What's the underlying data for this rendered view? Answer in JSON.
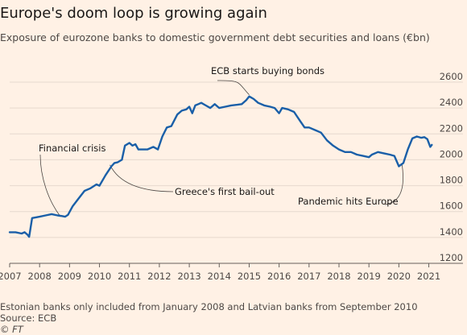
{
  "chart_data": {
    "type": "line",
    "title": "Europe's doom loop is growing again",
    "subtitle": "Exposure of eurozone banks to domestic government debt securities and loans (€bn)",
    "y_ticks": [
      1200,
      1400,
      1600,
      1800,
      2000,
      2200,
      2400,
      2600
    ],
    "x_ticks": [
      "2007",
      "2008",
      "2009",
      "2010",
      "2011",
      "2012",
      "2013",
      "2014",
      "2015",
      "2016",
      "2017",
      "2018",
      "2019",
      "2020",
      "2021"
    ],
    "xlim": [
      2007,
      2021.2
    ],
    "ylim": [
      1200,
      2600
    ],
    "grid": true,
    "color": "#1a5fa8",
    "series": [
      {
        "x": [
          2007.0,
          2007.2,
          2007.4,
          2007.5,
          2007.6,
          2007.65,
          2007.75,
          2008.0,
          2008.2,
          2008.4,
          2008.6,
          2008.75,
          2008.85,
          2008.95,
          2009.1,
          2009.3,
          2009.5,
          2009.7,
          2009.9,
          2010.0,
          2010.2,
          2010.4,
          2010.5,
          2010.6,
          2010.75,
          2010.85,
          2011.0,
          2011.1,
          2011.2,
          2011.3,
          2011.4,
          2011.6,
          2011.8,
          2011.95,
          2012.1,
          2012.25,
          2012.4,
          2012.6,
          2012.75,
          2012.9,
          2013.0,
          2013.1,
          2013.2,
          2013.3,
          2013.4,
          2013.55,
          2013.7,
          2013.85,
          2014.0,
          2014.2,
          2014.4,
          2014.6,
          2014.75,
          2014.9,
          2015.0,
          2015.15,
          2015.3,
          2015.5,
          2015.7,
          2015.85,
          2016.0,
          2016.1,
          2016.3,
          2016.5,
          2016.7,
          2016.85,
          2017.0,
          2017.2,
          2017.4,
          2017.6,
          2017.8,
          2018.0,
          2018.2,
          2018.4,
          2018.6,
          2018.8,
          2019.0,
          2019.1,
          2019.3,
          2019.5,
          2019.7,
          2019.85,
          2020.0,
          2020.15,
          2020.3,
          2020.45,
          2020.6,
          2020.75,
          2020.85,
          2020.95,
          2021.05,
          2021.1
        ],
        "y": [
          1440,
          1440,
          1430,
          1440,
          1420,
          1405,
          1550,
          1560,
          1570,
          1580,
          1570,
          1565,
          1560,
          1575,
          1640,
          1700,
          1760,
          1780,
          1810,
          1800,
          1880,
          1950,
          1975,
          1980,
          2000,
          2110,
          2130,
          2110,
          2120,
          2080,
          2080,
          2080,
          2100,
          2080,
          2180,
          2250,
          2260,
          2350,
          2380,
          2390,
          2410,
          2360,
          2420,
          2430,
          2440,
          2420,
          2400,
          2430,
          2400,
          2410,
          2420,
          2425,
          2430,
          2460,
          2490,
          2470,
          2440,
          2420,
          2410,
          2400,
          2360,
          2400,
          2390,
          2370,
          2300,
          2250,
          2250,
          2230,
          2210,
          2150,
          2110,
          2080,
          2060,
          2060,
          2040,
          2030,
          2020,
          2040,
          2060,
          2050,
          2040,
          2030,
          1950,
          1975,
          2080,
          2165,
          2180,
          2170,
          2175,
          2160,
          2100,
          2115
        ]
      }
    ],
    "annotations": [
      {
        "text": "ECB starts buying bonds",
        "x": 2015.0,
        "y": 2490
      },
      {
        "text": "Financial crisis",
        "x": 2008.7,
        "y": 1560
      },
      {
        "text": "Greece's first bail-out",
        "x": 2010.35,
        "y": 1960
      },
      {
        "text": "Pandemic hits Europe",
        "x": 2020.0,
        "y": 1960
      }
    ]
  },
  "footer": {
    "note": "Estonian banks only included from January 2008 and Latvian banks from September 2010",
    "source": "Source: ECB",
    "credit": "© FT"
  }
}
